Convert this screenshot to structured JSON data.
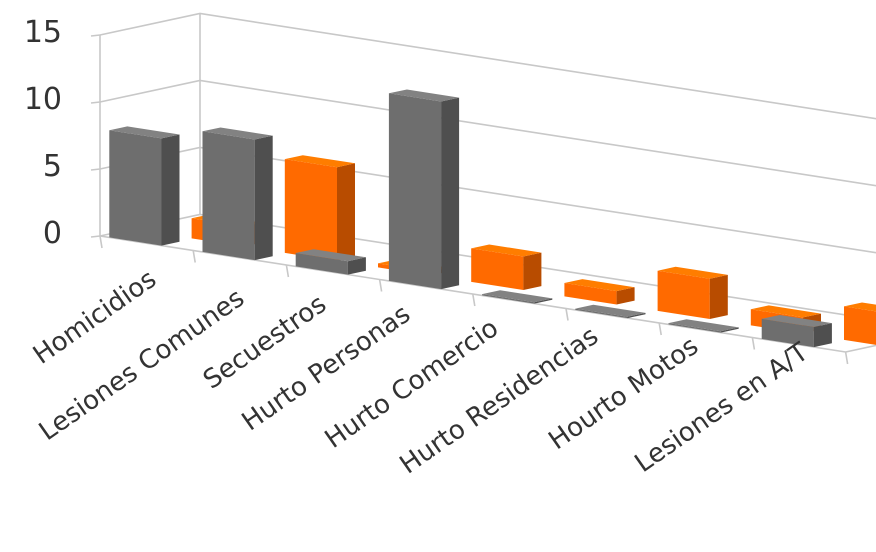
{
  "chart_data": {
    "type": "bar",
    "style": "3d-clustered",
    "categories": [
      "Homicidios",
      "Lesiones Comunes",
      "Secuestros",
      "Hurto Personas",
      "Hurto Comercio",
      "Hurto Residencias",
      "Hourto Motos",
      "Lesiones en A/T"
    ],
    "series": [
      {
        "color": "#6e6e6e",
        "values": [
          8,
          9,
          1,
          14,
          0.1,
          0.1,
          0.1,
          1.5
        ]
      },
      {
        "color": "#ff6a00",
        "values": [
          1.5,
          7,
          0.3,
          2.5,
          1,
          3,
          1.2,
          2.5
        ]
      }
    ],
    "ylim": [
      0,
      15
    ],
    "yticks": [
      "0",
      "5",
      "10",
      "15"
    ],
    "grid": true,
    "legend": "none",
    "title": "",
    "xlabel": "",
    "ylabel": ""
  }
}
